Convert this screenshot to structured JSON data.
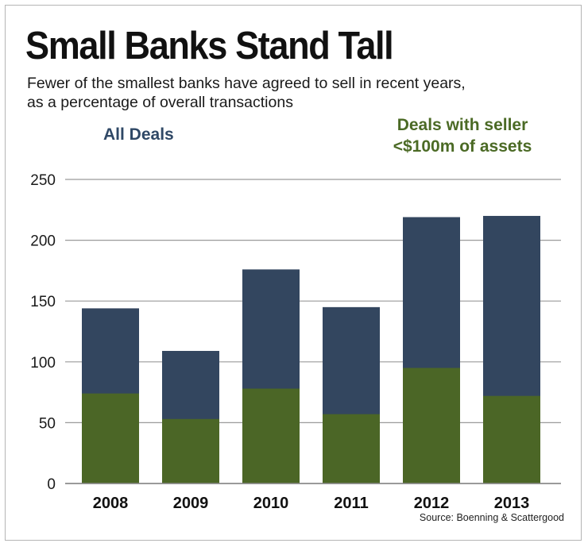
{
  "colors": {
    "all_deals": "#33465f",
    "small_seller": "#4b6626",
    "all_deals_label": "#2f4866",
    "small_seller_label": "#4b6a25",
    "gridline": "#9a9a9a"
  },
  "subtitle_lines": [
    "Fewer of the smallest banks have agreed to sell in recent years,",
    "as a percentage of overall transactions"
  ],
  "legend": {
    "all_deals": "All Deals",
    "small_seller_lines": [
      "Deals with seller",
      "<$100m of assets"
    ]
  },
  "source": "Source: Boenning & Scattergood",
  "chart_data": {
    "type": "bar",
    "title": "Small Banks Stand Tall",
    "subtitle": "Fewer of the smallest banks have agreed to sell in recent years, as a percentage of overall transactions",
    "xlabel": "",
    "ylabel": "",
    "ylim": [
      0,
      250
    ],
    "yticks": [
      0,
      50,
      100,
      150,
      200,
      250
    ],
    "grid": true,
    "legend_position": "top",
    "categories": [
      "2008",
      "2009",
      "2010",
      "2011",
      "2012",
      "2013"
    ],
    "series": [
      {
        "name": "All Deals",
        "values": [
          144,
          109,
          176,
          145,
          219,
          220
        ]
      },
      {
        "name": "Deals with seller <$100m of assets",
        "values": [
          74,
          53,
          78,
          57,
          95,
          72
        ]
      }
    ],
    "source": "Source: Boenning & Scattergood"
  }
}
